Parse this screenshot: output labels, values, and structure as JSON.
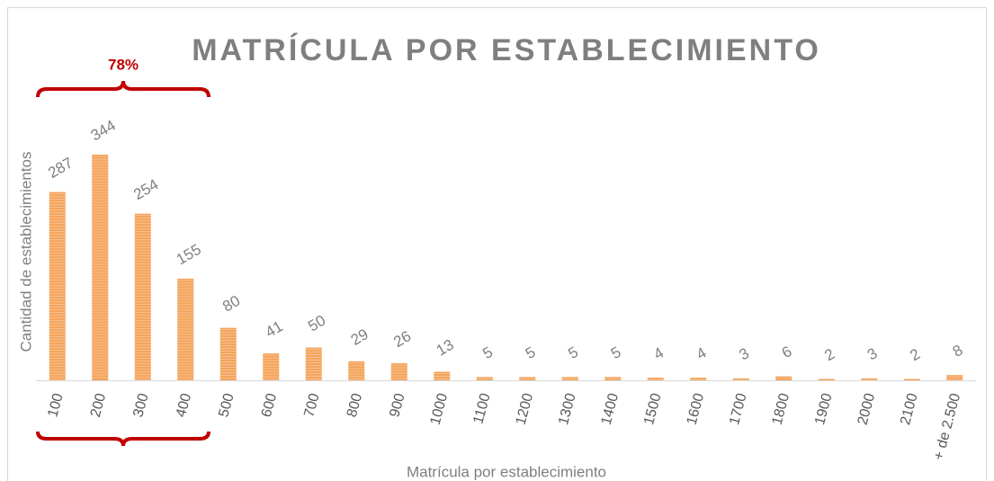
{
  "chart_data": {
    "type": "bar",
    "title": "MATRÍCULA POR ESTABLECIMIENTO",
    "y_label": "Cantidad de establecimientos",
    "x_label": "Matrícula por establecimiento",
    "annotation": "78%",
    "categories": [
      "100",
      "200",
      "300",
      "400",
      "500",
      "600",
      "700",
      "800",
      "900",
      "1000",
      "1100",
      "1200",
      "1300",
      "1400",
      "1500",
      "1600",
      "1700",
      "1800",
      "1900",
      "2000",
      "2100",
      "+ de 2.500"
    ],
    "values": [
      287,
      344,
      254,
      155,
      80,
      41,
      50,
      29,
      26,
      13,
      5,
      5,
      5,
      5,
      4,
      4,
      3,
      6,
      2,
      3,
      2,
      8
    ],
    "color": "#f4a259"
  }
}
